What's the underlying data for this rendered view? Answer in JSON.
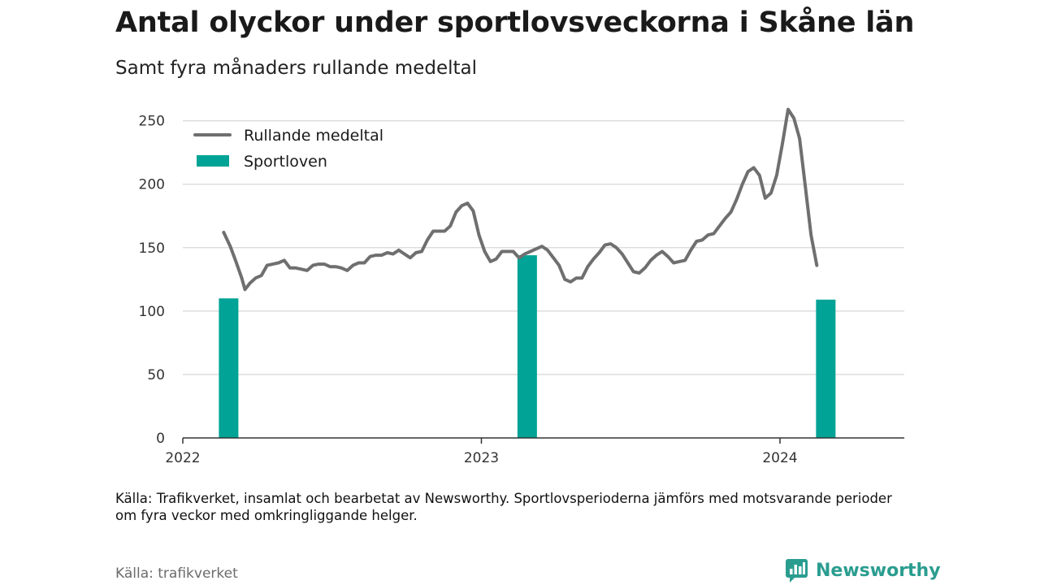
{
  "header": {
    "title": "Antal olyckor under sportlovsveckorna i Skåne län",
    "subtitle": "Samt fyra månaders rullande medeltal"
  },
  "footer": {
    "note": "Källa: Trafikverket, insamlat och bearbetat av Newsworthy. Sportlovsperioderna jämförs med motsvarande perioder om fyra veckor med omkringliggande helger.",
    "source": "Källa: trafikverket",
    "brand": "Newsworthy"
  },
  "colors": {
    "line": "#6f6f6f",
    "bar": "#00a395",
    "grid": "#dddddd",
    "brand": "#2a9d8f"
  },
  "chart_data": {
    "type": "bar+line",
    "legend": {
      "placement": "top-left",
      "items": [
        {
          "label": "Rullande medeltal",
          "kind": "line"
        },
        {
          "label": "Sportloven",
          "kind": "bar"
        }
      ]
    },
    "x_axis": {
      "min": "2022-01-01",
      "max": "2024-06-01",
      "tick_labels": [
        "2022",
        "2023",
        "2024"
      ],
      "tick_dates": [
        "2022-01-01",
        "2023-01-01",
        "2024-01-01"
      ]
    },
    "y_axis": {
      "min": 0,
      "max": 260,
      "ticks": [
        0,
        50,
        100,
        150,
        200,
        250
      ],
      "grid": true
    },
    "bars": {
      "name": "Sportloven",
      "points": [
        {
          "x": "2022-02-26",
          "y": 110
        },
        {
          "x": "2023-02-26",
          "y": 144
        },
        {
          "x": "2024-02-26",
          "y": 109
        }
      ]
    },
    "line": {
      "name": "Rullande medeltal",
      "x": [
        "2022-02-20",
        "2022-02-28",
        "2022-03-07",
        "2022-03-14",
        "2022-03-18",
        "2022-03-24",
        "2022-03-31",
        "2022-04-07",
        "2022-04-14",
        "2022-04-21",
        "2022-04-28",
        "2022-05-05",
        "2022-05-12",
        "2022-05-19",
        "2022-05-26",
        "2022-06-02",
        "2022-06-09",
        "2022-06-16",
        "2022-06-23",
        "2022-06-30",
        "2022-07-07",
        "2022-07-14",
        "2022-07-21",
        "2022-07-28",
        "2022-08-04",
        "2022-08-11",
        "2022-08-18",
        "2022-08-25",
        "2022-09-01",
        "2022-09-08",
        "2022-09-15",
        "2022-09-22",
        "2022-09-29",
        "2022-10-06",
        "2022-10-13",
        "2022-10-20",
        "2022-10-27",
        "2022-11-03",
        "2022-11-10",
        "2022-11-17",
        "2022-11-24",
        "2022-12-01",
        "2022-12-08",
        "2022-12-15",
        "2022-12-22",
        "2022-12-29",
        "2023-01-05",
        "2023-01-12",
        "2023-01-19",
        "2023-01-26",
        "2023-02-02",
        "2023-02-09",
        "2023-02-16",
        "2023-02-23",
        "2023-03-02",
        "2023-03-09",
        "2023-03-16",
        "2023-03-23",
        "2023-03-30",
        "2023-04-06",
        "2023-04-13",
        "2023-04-20",
        "2023-04-27",
        "2023-05-04",
        "2023-05-11",
        "2023-05-18",
        "2023-05-25",
        "2023-06-01",
        "2023-06-08",
        "2023-06-15",
        "2023-06-22",
        "2023-06-29",
        "2023-07-06",
        "2023-07-13",
        "2023-07-20",
        "2023-07-27",
        "2023-08-03",
        "2023-08-10",
        "2023-08-17",
        "2023-08-24",
        "2023-08-31",
        "2023-09-07",
        "2023-09-14",
        "2023-09-21",
        "2023-09-28",
        "2023-10-05",
        "2023-10-12",
        "2023-10-19",
        "2023-10-26",
        "2023-11-02",
        "2023-11-09",
        "2023-11-16",
        "2023-11-23",
        "2023-11-30",
        "2023-12-07",
        "2023-12-14",
        "2023-12-21",
        "2023-12-28",
        "2024-01-04",
        "2024-01-11",
        "2024-01-18",
        "2024-01-25",
        "2024-02-01",
        "2024-02-08",
        "2024-02-15"
      ],
      "y": [
        162,
        151,
        139,
        126,
        117,
        122,
        126,
        128,
        136,
        137,
        138,
        140,
        134,
        134,
        133,
        132,
        136,
        137,
        137,
        135,
        135,
        134,
        132,
        136,
        138,
        138,
        143,
        144,
        144,
        146,
        145,
        148,
        145,
        142,
        146,
        147,
        156,
        163,
        163,
        163,
        167,
        178,
        183,
        185,
        179,
        160,
        147,
        139,
        141,
        147,
        147,
        147,
        142,
        145,
        147,
        149,
        151,
        148,
        142,
        136,
        125,
        123,
        126,
        126,
        135,
        141,
        146,
        152,
        153,
        150,
        145,
        138,
        131,
        130,
        134,
        140,
        144,
        147,
        143,
        138,
        139,
        140,
        148,
        155,
        156,
        160,
        161,
        167,
        173,
        178,
        188,
        200,
        210,
        213,
        207,
        189,
        193,
        207,
        232,
        259,
        252,
        236,
        198,
        160,
        136
      ]
    }
  }
}
